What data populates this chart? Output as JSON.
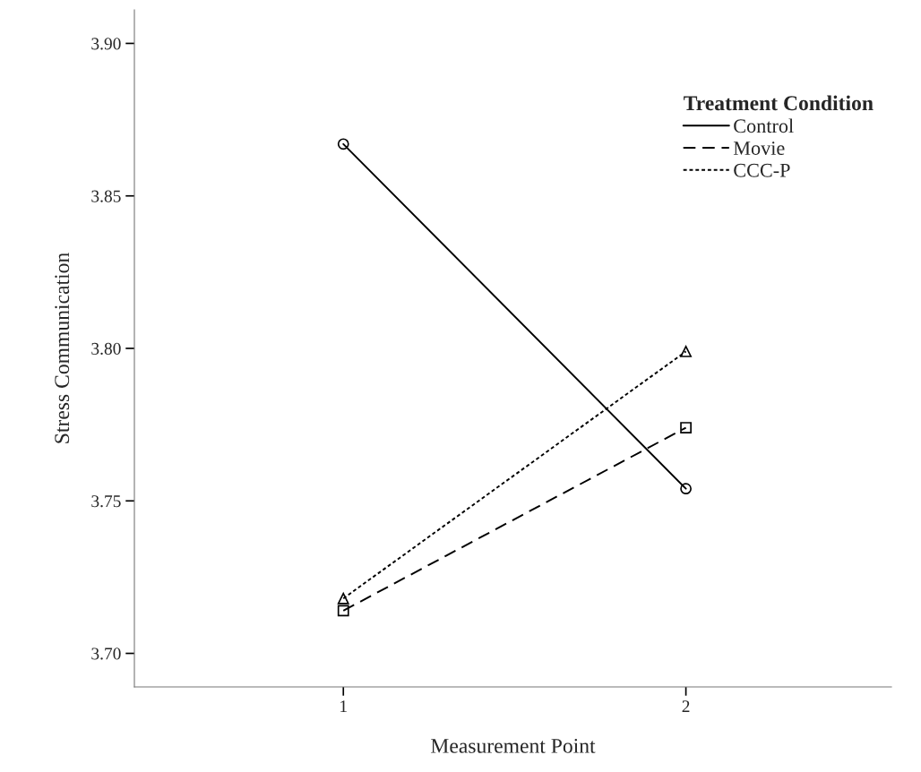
{
  "chart_data": {
    "type": "line",
    "xlabel": "Measurement Point",
    "ylabel": "Stress Communication",
    "legend_title": "Treatment Condition",
    "x": [
      1,
      2
    ],
    "xlim": [
      0.39,
      2.6
    ],
    "xticks": [
      1,
      2
    ],
    "ylim": [
      3.689,
      3.911
    ],
    "yticks": [
      {
        "value": 3.7,
        "label": "3.70"
      },
      {
        "value": 3.75,
        "label": "3.75"
      },
      {
        "value": 3.8,
        "label": "3.80"
      },
      {
        "value": 3.85,
        "label": "3.85"
      },
      {
        "value": 3.9,
        "label": "3.90"
      }
    ],
    "grid": false,
    "legend": "top right",
    "series": [
      {
        "name": "Control",
        "color": "#000000",
        "values": [
          3.867,
          3.754
        ],
        "marker": "circle",
        "line_style": "solid"
      },
      {
        "name": "Movie",
        "color": "#000000",
        "values": [
          3.714,
          3.774
        ],
        "marker": "square",
        "line_style": "dashed"
      },
      {
        "name": "CCC-P",
        "color": "#000000",
        "values": [
          3.718,
          3.799
        ],
        "marker": "triangle",
        "line_style": "dotted"
      }
    ]
  }
}
